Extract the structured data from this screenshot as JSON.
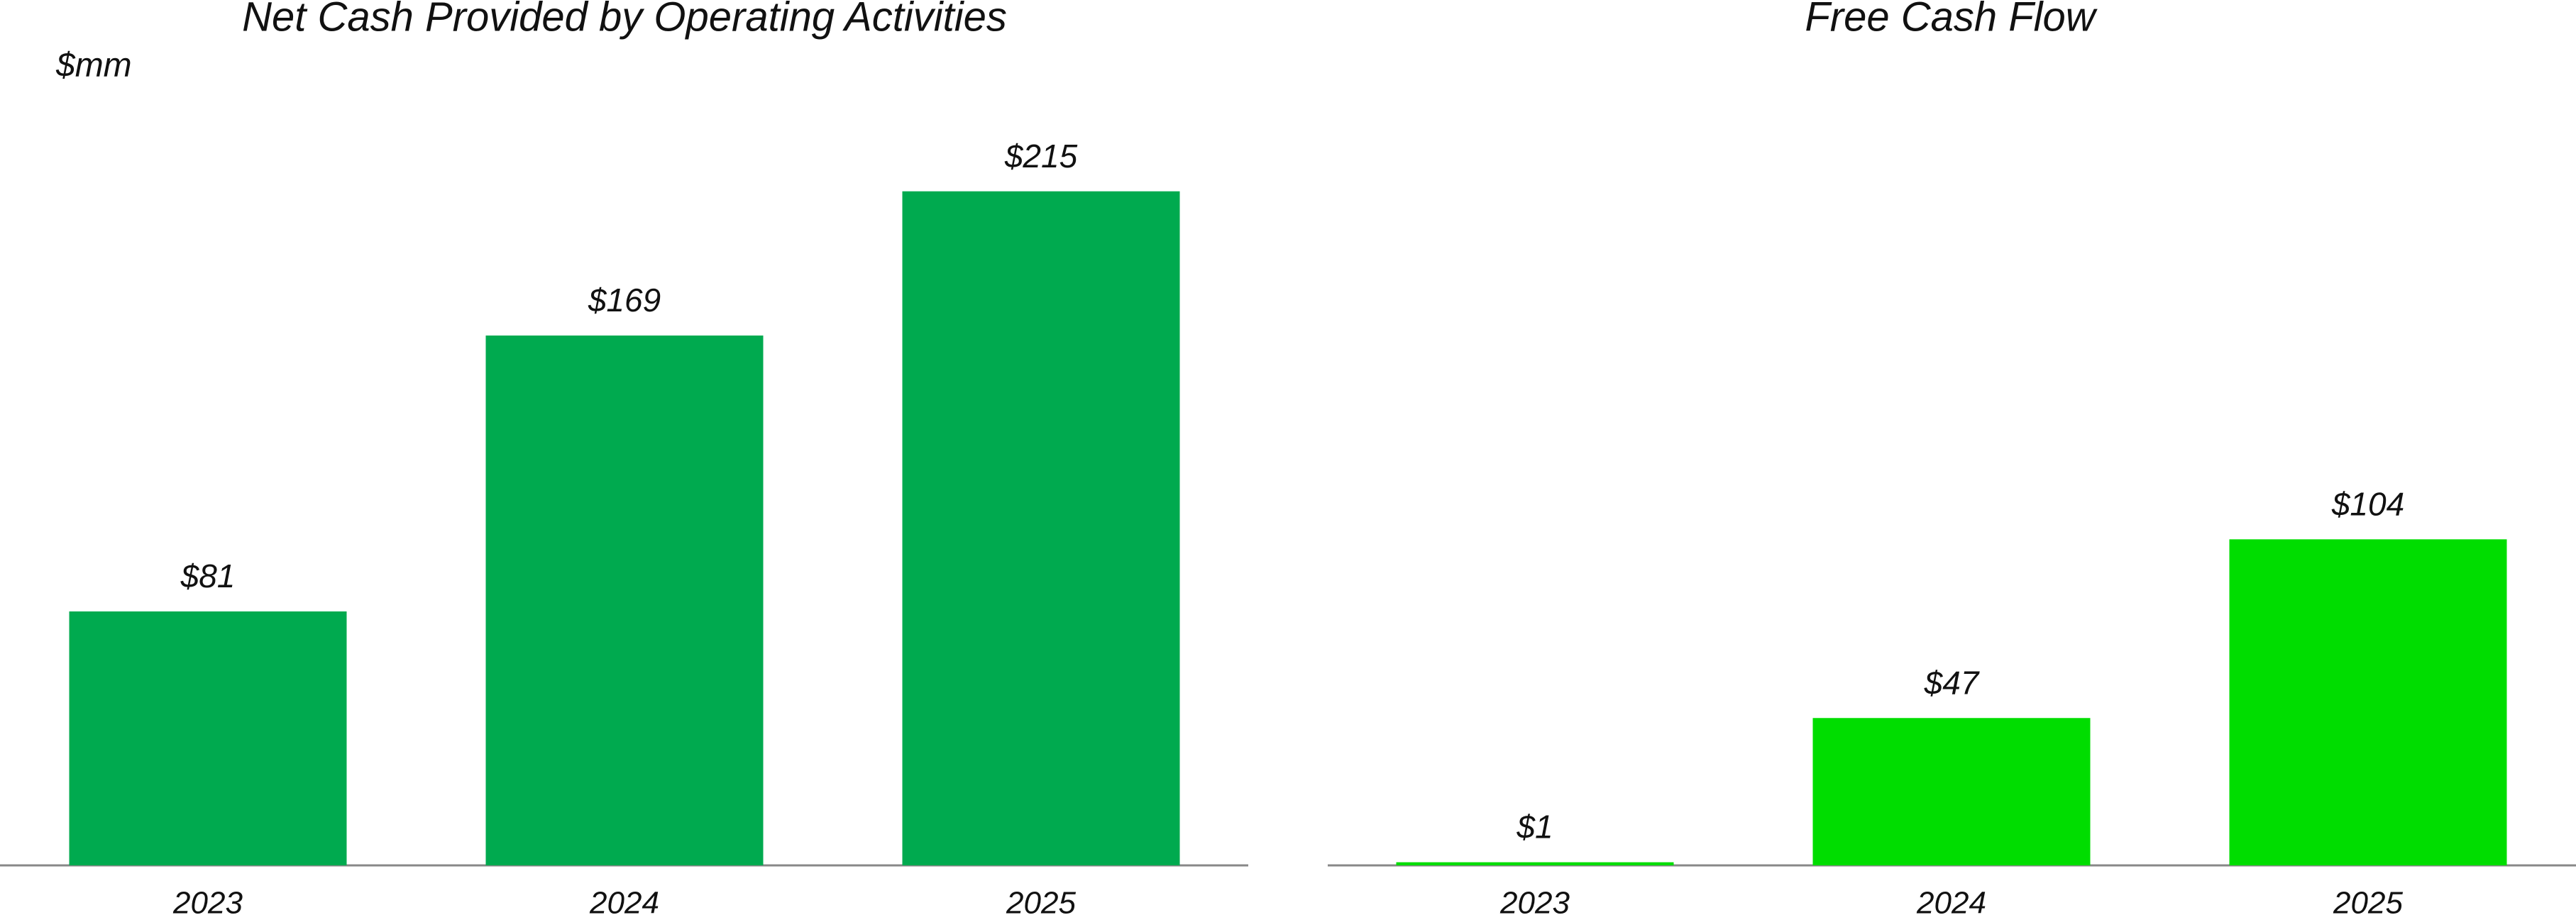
{
  "chart_data": [
    {
      "type": "bar",
      "title": "Net Cash Provided by Operating Activities",
      "subtitle": "$mm",
      "categories": [
        "2023",
        "2024",
        "2025"
      ],
      "values": [
        81,
        169,
        215
      ],
      "value_labels": [
        "$81",
        "$169",
        "$215"
      ],
      "color": "#00aa4f"
    },
    {
      "type": "bar",
      "title": "Free Cash Flow",
      "categories": [
        "2023",
        "2024",
        "2025"
      ],
      "values": [
        1,
        47,
        104
      ],
      "value_labels": [
        "$1",
        "$47",
        "$104"
      ],
      "color": "#00dd00"
    }
  ]
}
